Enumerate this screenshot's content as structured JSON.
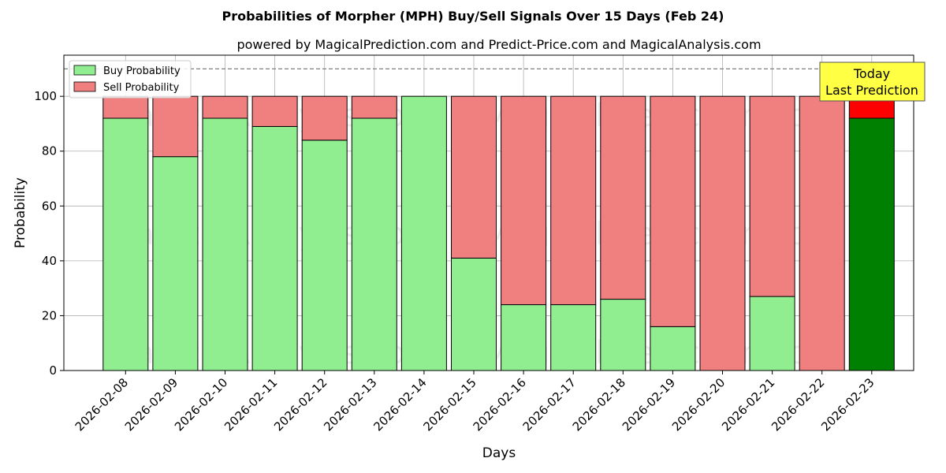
{
  "chart_data": {
    "type": "bar",
    "stacked": true,
    "title": "Probabilities of Morpher (MPH) Buy/Sell Signals Over 15 Days (Feb 24)",
    "subtitle": "powered by MagicalPrediction.com and Predict-Price.com and MagicalAnalysis.com",
    "xlabel": "Days",
    "ylabel": "Probability",
    "ylim": [
      0,
      115
    ],
    "yticks": [
      0,
      20,
      40,
      60,
      80,
      100
    ],
    "reference_line": 110,
    "grid": true,
    "legend_position": "top-left",
    "categories": [
      "2026-02-08",
      "2026-02-09",
      "2026-02-10",
      "2026-02-11",
      "2026-02-12",
      "2026-02-13",
      "2026-02-14",
      "2026-02-15",
      "2026-02-16",
      "2026-02-17",
      "2026-02-18",
      "2026-02-19",
      "2026-02-20",
      "2026-02-21",
      "2026-02-22",
      "2026-02-23"
    ],
    "series": [
      {
        "name": "Buy Probability",
        "color": "#90ee90",
        "highlight_color": "#008000",
        "values": [
          92,
          78,
          92,
          89,
          84,
          92,
          100,
          41,
          24,
          24,
          26,
          16,
          0,
          27,
          0,
          92
        ]
      },
      {
        "name": "Sell Probability",
        "color": "#f08080",
        "highlight_color": "#ff0000",
        "values": [
          8,
          22,
          8,
          11,
          16,
          8,
          0,
          59,
          76,
          76,
          74,
          84,
          100,
          73,
          100,
          8
        ]
      }
    ],
    "highlight_index": 15,
    "annotation": {
      "line1": "Today",
      "line2": "Last Prediction",
      "color": "#ffff44"
    },
    "watermarks": [
      "MagicalAnalysis.com",
      "MagicalPrediction.com"
    ]
  }
}
